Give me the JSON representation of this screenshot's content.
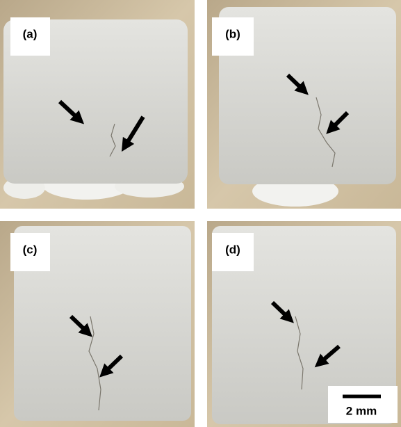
{
  "panels": [
    {
      "label": "(a)"
    },
    {
      "label": "(b)"
    },
    {
      "label": "(c)"
    },
    {
      "label": "(d)"
    }
  ],
  "scale_bar": {
    "label": "2 mm"
  }
}
